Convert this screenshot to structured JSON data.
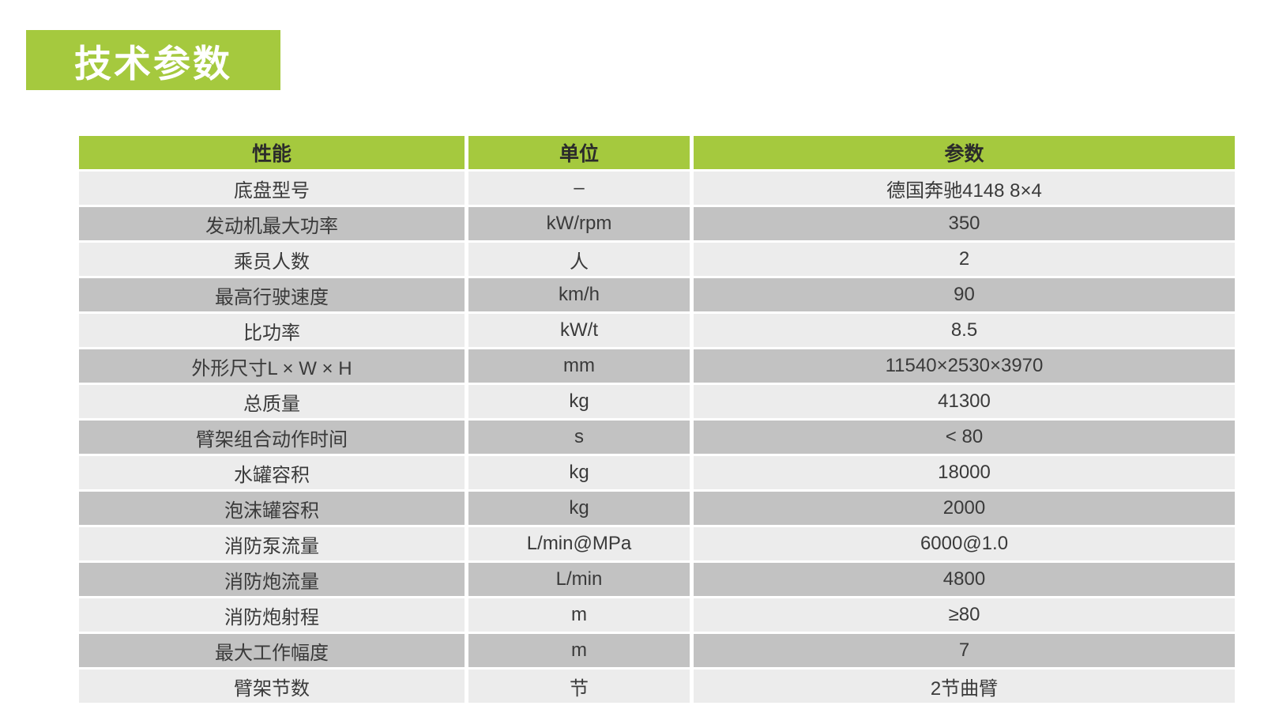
{
  "title": {
    "text": "技术参数"
  },
  "colors": {
    "green": "#a5c93e",
    "row_light": "#ececec",
    "row_dark": "#c2c2c2",
    "header_text": "#2b2b2b",
    "body_text": "#3a3a3a",
    "title_text": "#ffffff"
  },
  "table": {
    "headers": [
      "性能",
      "单位",
      "参数"
    ],
    "rows": [
      [
        "底盘型号",
        "–",
        "德国奔驰4148 8×4"
      ],
      [
        "发动机最大功率",
        "kW/rpm",
        "350"
      ],
      [
        "乘员人数",
        "人",
        "2"
      ],
      [
        "最高行驶速度",
        "km/h",
        "90"
      ],
      [
        "比功率",
        "kW/t",
        "8.5"
      ],
      [
        "外形尺寸L × W × H",
        "mm",
        "11540×2530×3970"
      ],
      [
        "总质量",
        "kg",
        "41300"
      ],
      [
        "臂架组合动作时间",
        "s",
        "< 80"
      ],
      [
        "水罐容积",
        "kg",
        "18000"
      ],
      [
        "泡沫罐容积",
        "kg",
        "2000"
      ],
      [
        "消防泵流量",
        "L/min@MPa",
        "6000@1.0"
      ],
      [
        "消防炮流量",
        "L/min",
        "4800"
      ],
      [
        "消防炮射程",
        "m",
        "≥80"
      ],
      [
        "最大工作幅度",
        "m",
        "7"
      ],
      [
        "臂架节数",
        "节",
        "2节曲臂"
      ]
    ]
  }
}
